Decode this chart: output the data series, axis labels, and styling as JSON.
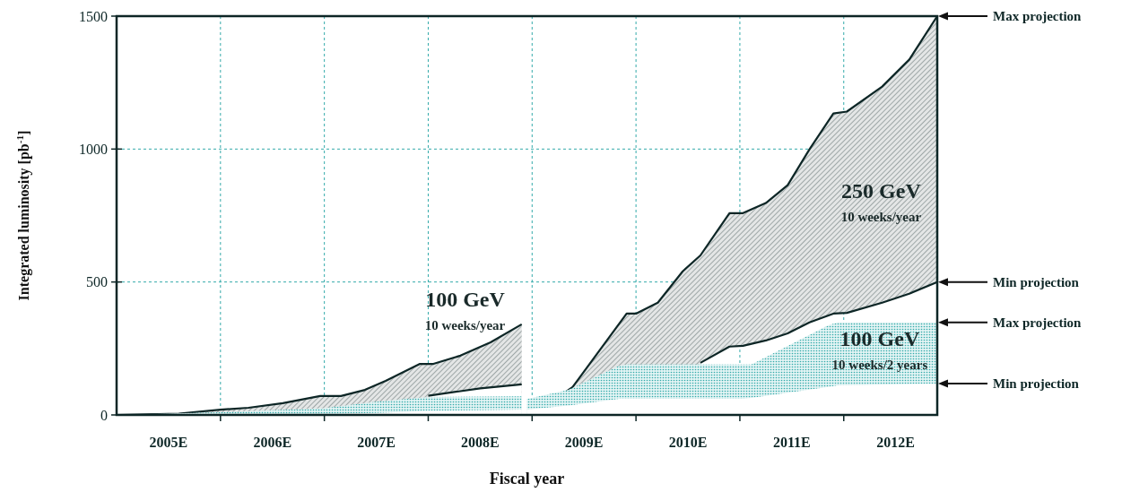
{
  "chart_data": {
    "type": "area",
    "xlabel": "Fiscal year",
    "ylabel": "Integrated luminosity [pb$^{-1}$]",
    "xlim": [
      2004.5,
      2012.4
    ],
    "ylim": [
      0,
      1500
    ],
    "xticks": [
      {
        "value": 2005,
        "label": "2005E"
      },
      {
        "value": 2005.5,
        "label": null
      },
      {
        "value": 2006,
        "label": "2006E"
      },
      {
        "value": 2006.5,
        "label": null
      },
      {
        "value": 2007,
        "label": "2007E"
      },
      {
        "value": 2007.5,
        "label": null
      },
      {
        "value": 2008,
        "label": "2008E"
      },
      {
        "value": 2008.5,
        "label": null
      },
      {
        "value": 2009,
        "label": "2009E"
      },
      {
        "value": 2009.5,
        "label": null
      },
      {
        "value": 2010,
        "label": "2010E"
      },
      {
        "value": 2010.5,
        "label": null
      },
      {
        "value": 2011,
        "label": "2011E"
      },
      {
        "value": 2011.5,
        "label": null
      },
      {
        "value": 2012,
        "label": "2012E"
      }
    ],
    "yticks": [
      0,
      500,
      1000,
      1500
    ],
    "grid": true,
    "series": [
      {
        "name": "100 GeV\n10 weeks/year",
        "color": "#0d2626",
        "line_style": "solid",
        "x": [
          2004.5,
          2005.1,
          2005.5,
          2005.77,
          2006.1,
          2006.46,
          2006.66,
          2006.89,
          2007.09,
          2007.42,
          2007.55,
          2007.81,
          2008.1,
          2008.4
        ],
        "values": [
          0,
          5,
          20,
          27,
          44,
          71,
          71,
          94,
          128,
          192,
          192,
          223,
          273,
          341
        ]
      },
      {
        "color": "#33aaaa",
        "x": [
          2004.5,
          2005.5,
          2006.5,
          2007,
          2007.5,
          2008.4
        ],
        "values": [
          0,
          10,
          25,
          50,
          67,
          70
        ]
      },
      {
        "color": "#ffffff",
        "x": [
          2004.5,
          2005.5,
          2006.5,
          2007,
          2007.5,
          2008.4
        ],
        "values": [
          0,
          0,
          3,
          8,
          15,
          20
        ]
      },
      {
        "type": "line",
        "color": "#0d2626",
        "line_style": "solid",
        "x": [
          2007.5,
          2008,
          2008.4
        ],
        "values": [
          72,
          100,
          115
        ]
      },
      {
        "name": "250 GeV\n10 weeks/year",
        "color": "#0d2626",
        "line_style": "solid",
        "x": [
          2008.54,
          2008.89,
          2009.41,
          2009.5,
          2009.71,
          2009.95,
          2010.12,
          2010.4,
          2010.53,
          2010.75,
          2010.96,
          2011.17,
          2011.4,
          2011.53,
          2011.87,
          2012.13,
          2012.4
        ],
        "values": [
          10,
          105,
          381,
          381,
          422,
          540,
          600,
          759,
          759,
          797,
          864,
          999,
          1134,
          1141,
          1235,
          1336,
          1500
        ]
      },
      {
        "name": "100 GeV\n10 weeks/2 years",
        "color": "#33aaaa",
        "x": [
          2008.45,
          2008.85,
          2009.34,
          2009.41,
          2010.52,
          2010.61,
          2011.35,
          2011.44,
          2012.4
        ],
        "values": [
          60,
          94,
          185,
          190,
          190,
          190,
          337,
          348,
          348
        ]
      },
      {
        "color": "#ffffff",
        "x": [
          2008.45,
          2008.85,
          2009.34,
          2009.41,
          2010.52,
          2010.61,
          2011.35,
          2011.44,
          2012.4
        ],
        "values": [
          20,
          35,
          61,
          61,
          61,
          64,
          105,
          111,
          118
        ]
      },
      {
        "type": "line",
        "color": "#0d2626",
        "line_style": "solid",
        "x": [
          2010.12,
          2010.4,
          2010.53,
          2010.75,
          2010.96,
          2011.17,
          2011.4,
          2011.53,
          2011.87,
          2012.13,
          2012.4
        ],
        "values": [
          196,
          257,
          260,
          280,
          307,
          348,
          381,
          384,
          422,
          456,
          500
        ]
      }
    ],
    "annotations": [
      "Max projection",
      "Min projection",
      "Max projection",
      "Min projection"
    ]
  }
}
